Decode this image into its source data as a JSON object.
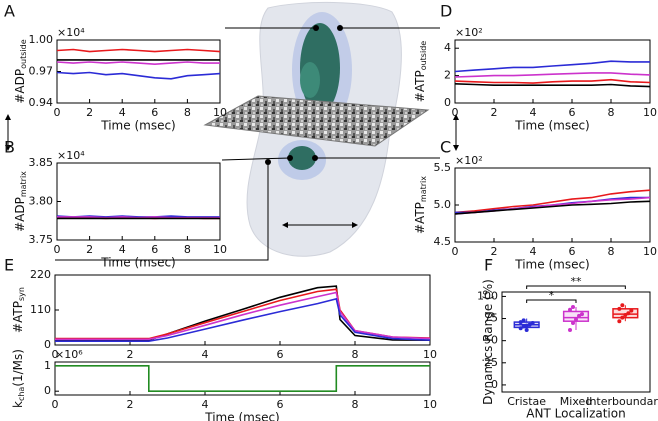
{
  "chart_data": [
    {
      "type": "line",
      "panel_label": "A",
      "ylabel": "#ADP",
      "ylabel_sub": "outside",
      "y_multiplier": "×10⁴",
      "xlabel": "Time (msec)",
      "x": [
        0,
        1,
        2,
        3,
        4,
        5,
        6,
        7,
        8,
        9,
        10
      ],
      "xlim": [
        0,
        10
      ],
      "xticks": [
        0,
        2,
        4,
        6,
        8,
        10
      ],
      "ylim": [
        0.94,
        1.0
      ],
      "yticks": [
        0.94,
        0.97,
        {
          "value": 1.0,
          "label": "1.00"
        }
      ],
      "series": [
        {
          "color": "#e8191c",
          "values": [
            0.99,
            0.991,
            0.989,
            0.99,
            0.991,
            0.99,
            0.989,
            0.99,
            0.991,
            0.99,
            0.989
          ]
        },
        {
          "color": "#cc33cc",
          "values": [
            0.979,
            0.978,
            0.979,
            0.978,
            0.979,
            0.978,
            0.977,
            0.978,
            0.979,
            0.978,
            0.978
          ]
        },
        {
          "color": "#2b2bd6",
          "values": [
            0.969,
            0.968,
            0.969,
            0.967,
            0.968,
            0.966,
            0.964,
            0.963,
            0.966,
            0.967,
            0.968
          ]
        },
        {
          "color": "#000000",
          "values": [
            0.981,
            0.981,
            0.981,
            0.981,
            0.981,
            0.981,
            0.981,
            0.981,
            0.981,
            0.981,
            0.981
          ]
        }
      ]
    },
    {
      "type": "line",
      "panel_label": "B",
      "ylabel": "#ADP",
      "ylabel_sub": "matrix",
      "y_multiplier": "×10⁴",
      "xlabel": "Time (msec)",
      "x": [
        0,
        1,
        2,
        3,
        4,
        5,
        6,
        7,
        8,
        9,
        10
      ],
      "xlim": [
        0,
        10
      ],
      "xticks": [
        0,
        2,
        4,
        6,
        8,
        10
      ],
      "ylim": [
        3.75,
        3.85
      ],
      "yticks": [
        3.75,
        {
          "value": 3.8,
          "label": "3.80"
        },
        3.85
      ],
      "series": [
        {
          "color": "#e8191c",
          "values": [
            3.779,
            3.779,
            3.779,
            3.778,
            3.779,
            3.779,
            3.778,
            3.779,
            3.779,
            3.778,
            3.778
          ]
        },
        {
          "color": "#2b2bd6",
          "values": [
            3.781,
            3.78,
            3.781,
            3.78,
            3.781,
            3.78,
            3.78,
            3.781,
            3.78,
            3.78,
            3.78
          ]
        },
        {
          "color": "#cc33cc",
          "values": [
            3.78,
            3.78,
            3.78,
            3.779,
            3.78,
            3.779,
            3.78,
            3.779,
            3.779,
            3.779,
            3.779
          ]
        },
        {
          "color": "#000000",
          "values": [
            3.778,
            3.778,
            3.778,
            3.778,
            3.778,
            3.778,
            3.778,
            3.778,
            3.778,
            3.778,
            3.778
          ]
        }
      ]
    },
    {
      "type": "line",
      "panel_label": "D",
      "ylabel": "#ATP",
      "ylabel_sub": "outside",
      "y_multiplier": "×10²",
      "xlabel": "Time (msec)",
      "x": [
        0,
        1,
        2,
        3,
        4,
        5,
        6,
        7,
        8,
        9,
        10
      ],
      "xlim": [
        0,
        10
      ],
      "xticks": [
        0,
        2,
        4,
        6,
        8,
        10
      ],
      "ylim": [
        0,
        4.6
      ],
      "yticks": [
        0,
        2,
        4
      ],
      "series": [
        {
          "color": "#2b2bd6",
          "values": [
            2.3,
            2.4,
            2.5,
            2.6,
            2.6,
            2.7,
            2.8,
            2.9,
            3.05,
            3.0,
            3.0
          ]
        },
        {
          "color": "#cc33cc",
          "values": [
            1.9,
            1.95,
            2.0,
            2.0,
            2.05,
            2.1,
            2.15,
            2.2,
            2.2,
            2.1,
            2.05
          ]
        },
        {
          "color": "#e8191c",
          "values": [
            1.6,
            1.55,
            1.5,
            1.5,
            1.45,
            1.55,
            1.6,
            1.6,
            1.7,
            1.55,
            1.5
          ]
        },
        {
          "color": "#000000",
          "values": [
            1.4,
            1.35,
            1.3,
            1.3,
            1.3,
            1.3,
            1.3,
            1.3,
            1.35,
            1.25,
            1.2
          ]
        }
      ]
    },
    {
      "type": "line",
      "panel_label": "C",
      "ylabel": "#ATP",
      "ylabel_sub": "matrix",
      "y_multiplier": "×10²",
      "xlabel": "Time (msec)",
      "x": [
        0,
        1,
        2,
        3,
        4,
        5,
        6,
        7,
        8,
        9,
        10
      ],
      "xlim": [
        0,
        10
      ],
      "xticks": [
        0,
        2,
        4,
        6,
        8,
        10
      ],
      "ylim": [
        4.5,
        5.5
      ],
      "yticks": [
        4.5,
        {
          "value": 5.0,
          "label": "5.0"
        },
        5.5
      ],
      "series": [
        {
          "color": "#e8191c",
          "values": [
            4.9,
            4.92,
            4.95,
            4.98,
            5.0,
            5.04,
            5.08,
            5.1,
            5.15,
            5.18,
            5.2
          ]
        },
        {
          "color": "#2b2bd6",
          "values": [
            4.9,
            4.9,
            4.93,
            4.95,
            4.98,
            5.0,
            5.03,
            5.05,
            5.08,
            5.1,
            5.1
          ]
        },
        {
          "color": "#cc33cc",
          "values": [
            4.88,
            4.9,
            4.92,
            4.95,
            4.97,
            5.0,
            5.02,
            5.05,
            5.07,
            5.08,
            5.1
          ]
        },
        {
          "color": "#000000",
          "values": [
            4.88,
            4.9,
            4.92,
            4.94,
            4.96,
            4.98,
            5.0,
            5.01,
            5.02,
            5.04,
            5.05
          ]
        }
      ]
    },
    {
      "type": "line",
      "panel_label": "E",
      "ylabel": "#ATP",
      "ylabel_sub": "syn",
      "x": [
        0,
        1,
        2,
        2.5,
        3,
        4,
        5,
        6,
        7,
        7.5,
        7.6,
        8,
        9,
        10
      ],
      "xlim": [
        0,
        10
      ],
      "xticks": [
        0,
        2,
        4,
        6,
        8,
        10
      ],
      "ylim": [
        0,
        220
      ],
      "yticks": [
        0,
        110,
        220
      ],
      "series": [
        {
          "color": "#000000",
          "values": [
            15,
            15,
            15,
            15,
            35,
            75,
            112,
            150,
            180,
            185,
            80,
            30,
            16,
            15
          ]
        },
        {
          "color": "#e8191c",
          "values": [
            20,
            20,
            20,
            20,
            35,
            70,
            105,
            140,
            168,
            175,
            110,
            45,
            25,
            22
          ]
        },
        {
          "color": "#cc33cc",
          "values": [
            18,
            18,
            18,
            18,
            30,
            62,
            95,
            125,
            152,
            165,
            105,
            45,
            25,
            20
          ]
        },
        {
          "color": "#2b2bd6",
          "values": [
            12,
            12,
            12,
            12,
            22,
            50,
            78,
            105,
            130,
            145,
            95,
            40,
            20,
            15
          ]
        }
      ]
    },
    {
      "type": "line",
      "ylabel": "k",
      "ylabel_sub": "cha",
      "ylabel_unit": "(1/Ms)",
      "y_multiplier": "×10⁶",
      "xlabel": "Time (msec)",
      "x": [
        0,
        2.5,
        2.5,
        7.5,
        7.5,
        10
      ],
      "xlim": [
        0,
        10
      ],
      "xticks": [
        0,
        2,
        4,
        6,
        8,
        10
      ],
      "ylim": [
        -0.15,
        1.15
      ],
      "yticks": [
        0,
        1
      ],
      "series": [
        {
          "color": "#228b22",
          "values": [
            1,
            1,
            0,
            0,
            1,
            1
          ]
        }
      ]
    },
    {
      "type": "box",
      "panel_label": "F",
      "ylabel": "Dynamics Range (%)",
      "xlabel": "ANT Localization",
      "categories": [
        "Cristae",
        "Mixed",
        "Interboundary"
      ],
      "colors": [
        "#2b2bd6",
        "#cc33cc",
        "#e8191c"
      ],
      "ylim": [
        -8,
        105
      ],
      "yticks": [
        0,
        25,
        50,
        75,
        100
      ],
      "boxes": [
        {
          "min": 62,
          "q1": 65,
          "median": 68,
          "q3": 71,
          "max": 75,
          "points": [
            64,
            66,
            67,
            68,
            70,
            71,
            73,
            62
          ]
        },
        {
          "min": 62,
          "q1": 72,
          "median": 76,
          "q3": 83,
          "max": 88,
          "points": [
            62,
            70,
            74,
            78,
            80,
            85,
            88
          ]
        },
        {
          "min": 72,
          "q1": 76,
          "median": 80,
          "q3": 86,
          "max": 90,
          "points": [
            72,
            76,
            79,
            81,
            84,
            86,
            90
          ]
        }
      ],
      "annotations": [
        {
          "text": "*",
          "from": 0,
          "to": 1
        },
        {
          "text": "**",
          "from": 0,
          "to": 2
        }
      ]
    }
  ]
}
